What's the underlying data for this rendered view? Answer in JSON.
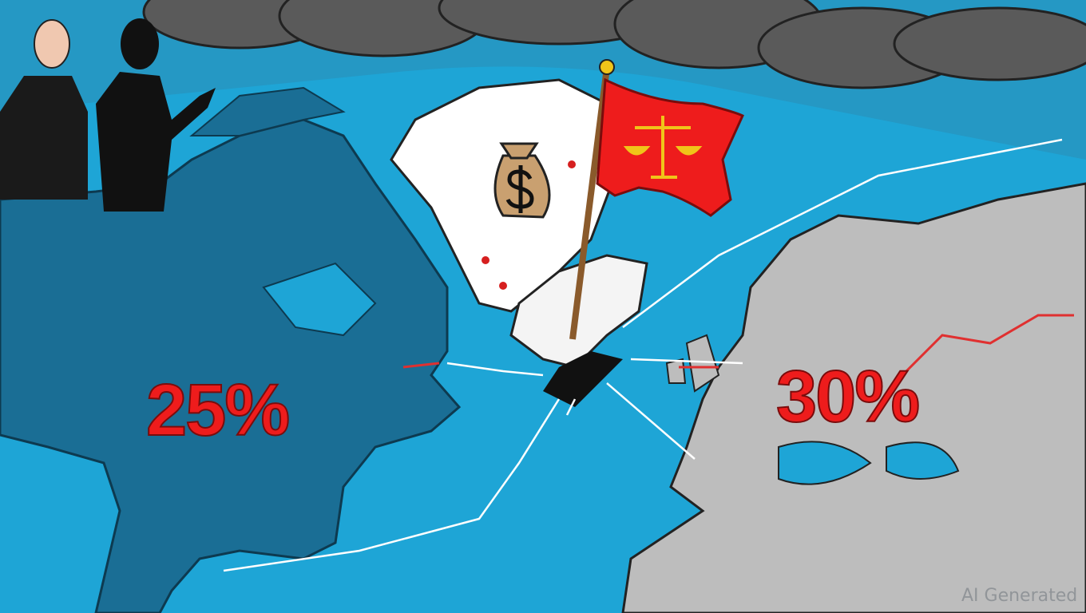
{
  "illustration": {
    "tariff_left": "25%",
    "tariff_right": "30%",
    "watermark": "AI Generated",
    "icons": [
      "storm-clouds",
      "money-bag-dollar",
      "flag-scales-of-justice",
      "businessmen-silhouettes",
      "cracked-iceland"
    ],
    "colors": {
      "ocean": "#1ea5d6",
      "north_america": "#1a6e95",
      "europe": "#bdbdbd",
      "greenland": "#ffffff",
      "flag": "#ee1c1c",
      "clouds": "#5a5a5a",
      "percent_text": "#ee1c1c"
    }
  }
}
